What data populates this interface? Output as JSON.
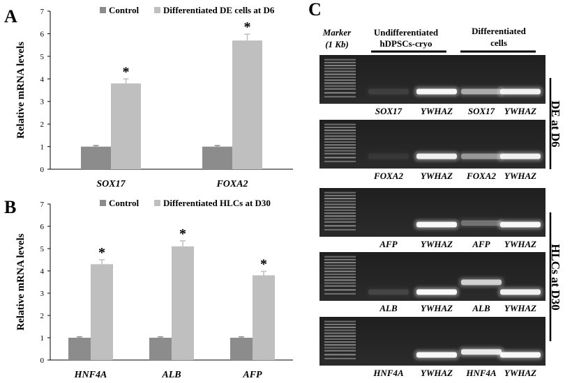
{
  "panels": {
    "a": "A",
    "b": "B",
    "c": "C"
  },
  "chart_data": [
    {
      "type": "bar",
      "ylabel": "Relative mRNA levels",
      "ylim": [
        0,
        7
      ],
      "yticks": [
        "0",
        "1",
        "2",
        "3",
        "4",
        "5",
        "6",
        "7"
      ],
      "categories": [
        "SOX17",
        "FOXA2"
      ],
      "series": [
        {
          "name": "Control",
          "values": [
            1.0,
            1.0
          ],
          "errors": [
            0.05,
            0.05
          ],
          "color": "#8c8c8c"
        },
        {
          "name": "Differentiated DE cells at D6",
          "values": [
            3.8,
            5.7
          ],
          "errors": [
            0.2,
            0.28
          ],
          "color": "#bfbfbf"
        }
      ],
      "significance": [
        "*",
        "*"
      ],
      "legend": "top"
    },
    {
      "type": "bar",
      "ylabel": "Relative mRNA levels",
      "ylim": [
        0,
        7
      ],
      "yticks": [
        "0",
        "1",
        "2",
        "3",
        "4",
        "5",
        "6",
        "7"
      ],
      "categories": [
        "HNF4A",
        "ALB",
        "AFP"
      ],
      "series": [
        {
          "name": "Control",
          "values": [
            1.0,
            1.0,
            1.0
          ],
          "errors": [
            0.04,
            0.04,
            0.04
          ],
          "color": "#8c8c8c"
        },
        {
          "name": "Differentiated HLCs at D30",
          "values": [
            4.3,
            5.1,
            3.8
          ],
          "errors": [
            0.2,
            0.25,
            0.18
          ],
          "color": "#bfbfbf"
        }
      ],
      "significance": [
        "*",
        "*",
        "*"
      ],
      "legend": "top"
    }
  ],
  "gel": {
    "marker_label": [
      "Marker",
      "(1 Kb)"
    ],
    "group_undiff": [
      "Undifferentiated",
      "hDPSCs-cryo"
    ],
    "group_diff": [
      "Differentiated",
      "cells"
    ],
    "side_de": "DE at D6",
    "side_hlc": "HLCs at D30",
    "rows": [
      {
        "labels": [
          "SOX17",
          "YWHAZ",
          "SOX17",
          "YWHAZ"
        ],
        "bands": [
          0.08,
          1.0,
          0.55,
          0.95
        ],
        "band_pos": [
          0.75,
          0.75,
          0.75,
          0.75
        ]
      },
      {
        "labels": [
          "FOXA2",
          "YWHAZ",
          "FOXA2",
          "YWHAZ"
        ],
        "bands": [
          0.05,
          0.95,
          0.45,
          0.95
        ],
        "band_pos": [
          0.75,
          0.75,
          0.75,
          0.75
        ]
      },
      {
        "labels": [
          "AFP",
          "YWHAZ",
          "AFP",
          "YWHAZ"
        ],
        "bands": [
          0.0,
          1.0,
          0.3,
          1.0
        ],
        "band_pos": [
          0.75,
          0.75,
          0.72,
          0.75
        ]
      },
      {
        "labels": [
          "ALB",
          "YWHAZ",
          "ALB",
          "YWHAZ"
        ],
        "bands": [
          0.1,
          1.0,
          0.75,
          0.95
        ],
        "band_pos": [
          0.82,
          0.82,
          0.62,
          0.82
        ]
      },
      {
        "labels": [
          "HNF4A",
          "YWHAZ",
          "HNF4A",
          "YWHAZ"
        ],
        "bands": [
          0.0,
          1.0,
          0.9,
          1.0
        ],
        "band_pos": [
          0.78,
          0.78,
          0.72,
          0.78
        ]
      }
    ]
  }
}
